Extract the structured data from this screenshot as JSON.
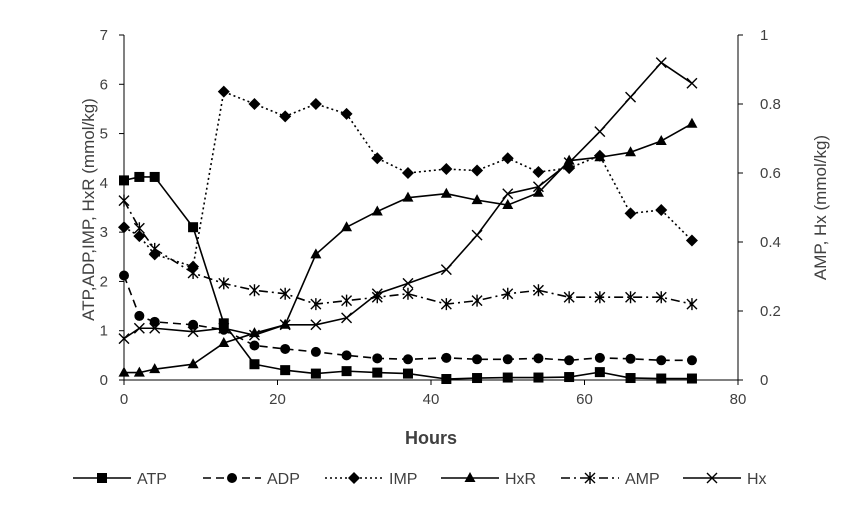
{
  "chart_data": {
    "type": "line",
    "xlabel": "Hours",
    "ylabel_left": "ATP,ADP,IMP, HxR (mmol/kg)",
    "ylabel_right": "AMP, Hx (mmol/kg)",
    "xlim": [
      0,
      80
    ],
    "xticks": [
      0,
      20,
      40,
      60,
      80
    ],
    "ylim_left": [
      0,
      7
    ],
    "yticks_left": [
      0,
      1,
      2,
      3,
      4,
      5,
      6,
      7
    ],
    "ylim_right": [
      0,
      1
    ],
    "yticks_right": [
      "0",
      "0.2",
      "0.4",
      "0.6",
      "0.8",
      "1"
    ],
    "grid": false,
    "legend_position": "bottom",
    "series": [
      {
        "name": "ATP",
        "axis": "left",
        "marker": "square",
        "line": "solid",
        "x": [
          0,
          2,
          4,
          9,
          13,
          17,
          21,
          25,
          29,
          33,
          37,
          42,
          46,
          50,
          54,
          58,
          62,
          66,
          70,
          74
        ],
        "values": [
          4.05,
          4.12,
          4.12,
          3.1,
          1.15,
          0.32,
          0.2,
          0.13,
          0.18,
          0.15,
          0.13,
          0.02,
          0.04,
          0.05,
          0.05,
          0.06,
          0.16,
          0.04,
          0.03,
          0.03
        ]
      },
      {
        "name": "ADP",
        "axis": "left",
        "marker": "circle",
        "line": "dashed",
        "x": [
          0,
          2,
          4,
          9,
          13,
          17,
          21,
          25,
          29,
          33,
          37,
          42,
          46,
          50,
          54,
          58,
          62,
          66,
          70,
          74
        ],
        "values": [
          2.12,
          1.3,
          1.18,
          1.12,
          1.02,
          0.7,
          0.63,
          0.57,
          0.5,
          0.44,
          0.42,
          0.45,
          0.42,
          0.42,
          0.44,
          0.4,
          0.45,
          0.43,
          0.4,
          0.4
        ]
      },
      {
        "name": "IMP",
        "axis": "left",
        "marker": "diamond",
        "line": "dotted",
        "x": [
          0,
          2,
          4,
          9,
          13,
          17,
          21,
          25,
          29,
          33,
          37,
          42,
          46,
          50,
          54,
          58,
          62,
          66,
          70,
          74
        ],
        "values": [
          3.1,
          2.92,
          2.55,
          2.3,
          5.85,
          5.6,
          5.35,
          5.6,
          5.4,
          4.5,
          4.2,
          4.28,
          4.25,
          4.5,
          4.22,
          4.3,
          4.55,
          3.38,
          3.45,
          2.83
        ]
      },
      {
        "name": "HxR",
        "axis": "left",
        "marker": "triangle",
        "line": "solid",
        "x": [
          0,
          2,
          4,
          9,
          13,
          17,
          21,
          25,
          29,
          33,
          37,
          42,
          46,
          50,
          54,
          58,
          62,
          66,
          70,
          74
        ],
        "values": [
          0.15,
          0.15,
          0.22,
          0.32,
          0.75,
          0.95,
          1.12,
          2.55,
          3.1,
          3.42,
          3.7,
          3.78,
          3.65,
          3.55,
          3.8,
          4.45,
          4.52,
          4.62,
          4.85,
          5.2
        ]
      },
      {
        "name": "AMP",
        "axis": "right",
        "marker": "asterisk",
        "line": "dashdot",
        "x": [
          0,
          2,
          4,
          9,
          13,
          17,
          21,
          25,
          29,
          33,
          37,
          42,
          46,
          50,
          54,
          58,
          62,
          66,
          70,
          74
        ],
        "values": [
          0.52,
          0.44,
          0.38,
          0.31,
          0.28,
          0.26,
          0.25,
          0.22,
          0.23,
          0.24,
          0.25,
          0.22,
          0.23,
          0.25,
          0.26,
          0.24,
          0.24,
          0.24,
          0.24,
          0.22
        ]
      },
      {
        "name": "Hx",
        "axis": "right",
        "marker": "x",
        "line": "solid",
        "x": [
          0,
          2,
          4,
          9,
          13,
          17,
          21,
          25,
          29,
          33,
          37,
          42,
          46,
          50,
          54,
          58,
          62,
          66,
          70,
          74
        ],
        "values": [
          0.12,
          0.15,
          0.15,
          0.14,
          0.15,
          0.13,
          0.16,
          0.16,
          0.18,
          0.25,
          0.28,
          0.32,
          0.42,
          0.54,
          0.56,
          0.63,
          0.72,
          0.82,
          0.92,
          0.86
        ]
      }
    ]
  }
}
